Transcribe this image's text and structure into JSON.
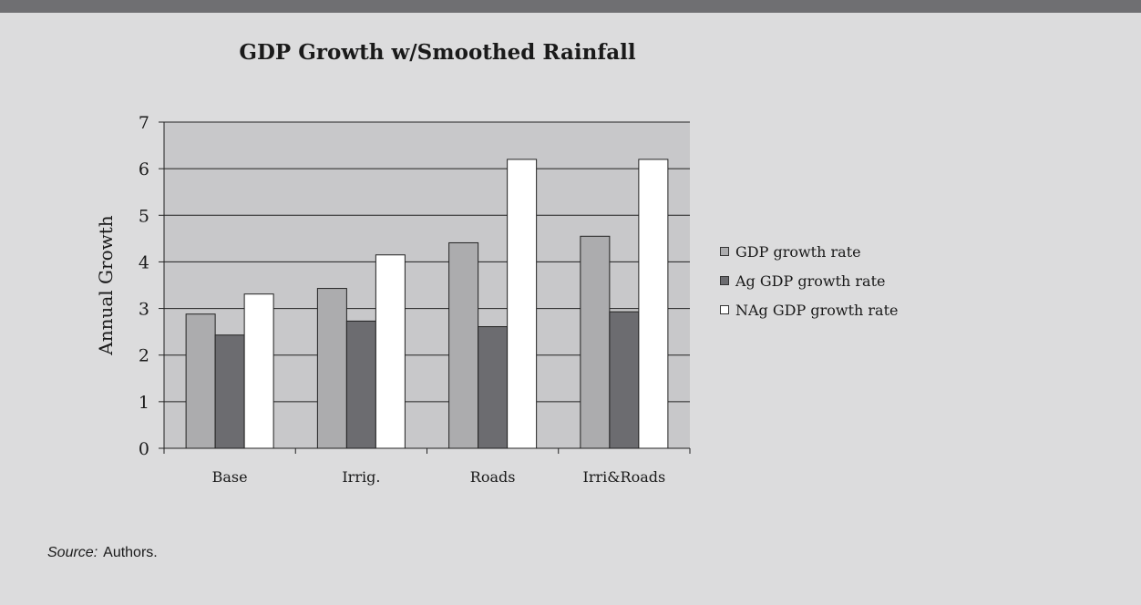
{
  "chart_data": {
    "type": "bar",
    "title": "GDP Growth w/Smoothed Rainfall",
    "ylabel": "Annual Growth",
    "xlabel": "",
    "ylim": [
      0,
      7
    ],
    "yticks": [
      0,
      1,
      2,
      3,
      4,
      5,
      6,
      7
    ],
    "grid": true,
    "legend_position": "right",
    "categories": [
      "Base",
      "Irrig.",
      "Roads",
      "Irri&Roads"
    ],
    "series": [
      {
        "name": "GDP growth rate",
        "color": "#acacae",
        "values": [
          2.88,
          3.43,
          4.41,
          4.55
        ]
      },
      {
        "name": "Ag GDP growth rate",
        "color": "#6c6c70",
        "values": [
          2.43,
          2.73,
          2.61,
          2.93
        ]
      },
      {
        "name": "NAg GDP growth rate",
        "color": "#ffffff",
        "values": [
          3.31,
          4.15,
          6.2,
          6.2
        ]
      }
    ]
  },
  "source": {
    "label": "Source:",
    "text": "Authors."
  }
}
